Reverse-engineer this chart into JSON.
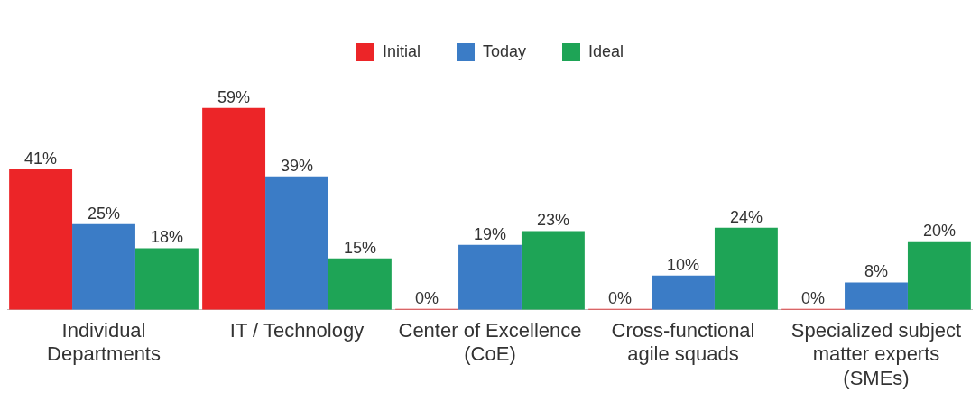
{
  "chart_data": {
    "type": "bar",
    "categories": [
      "Individual Departments",
      "IT / Technology",
      "Center of Excellence (CoE)",
      "Cross-functional agile squads",
      "Specialized subject matter experts (SMEs)"
    ],
    "series": [
      {
        "name": "Initial",
        "color": "#ec2528",
        "values": [
          41,
          59,
          0,
          0,
          0
        ],
        "value_labels": [
          "41%",
          "59%",
          "0%",
          "0%",
          "0%"
        ]
      },
      {
        "name": "Today",
        "color": "#3b7cc6",
        "values": [
          25,
          39,
          19,
          10,
          8
        ],
        "value_labels": [
          "25%",
          "39%",
          "19%",
          "10%",
          "8%"
        ]
      },
      {
        "name": "Ideal",
        "color": "#1ea456",
        "values": [
          18,
          15,
          23,
          24,
          20
        ],
        "value_labels": [
          "18%",
          "15%",
          "23%",
          "24%",
          "20%"
        ]
      }
    ],
    "legend": "top",
    "grid": false
  }
}
